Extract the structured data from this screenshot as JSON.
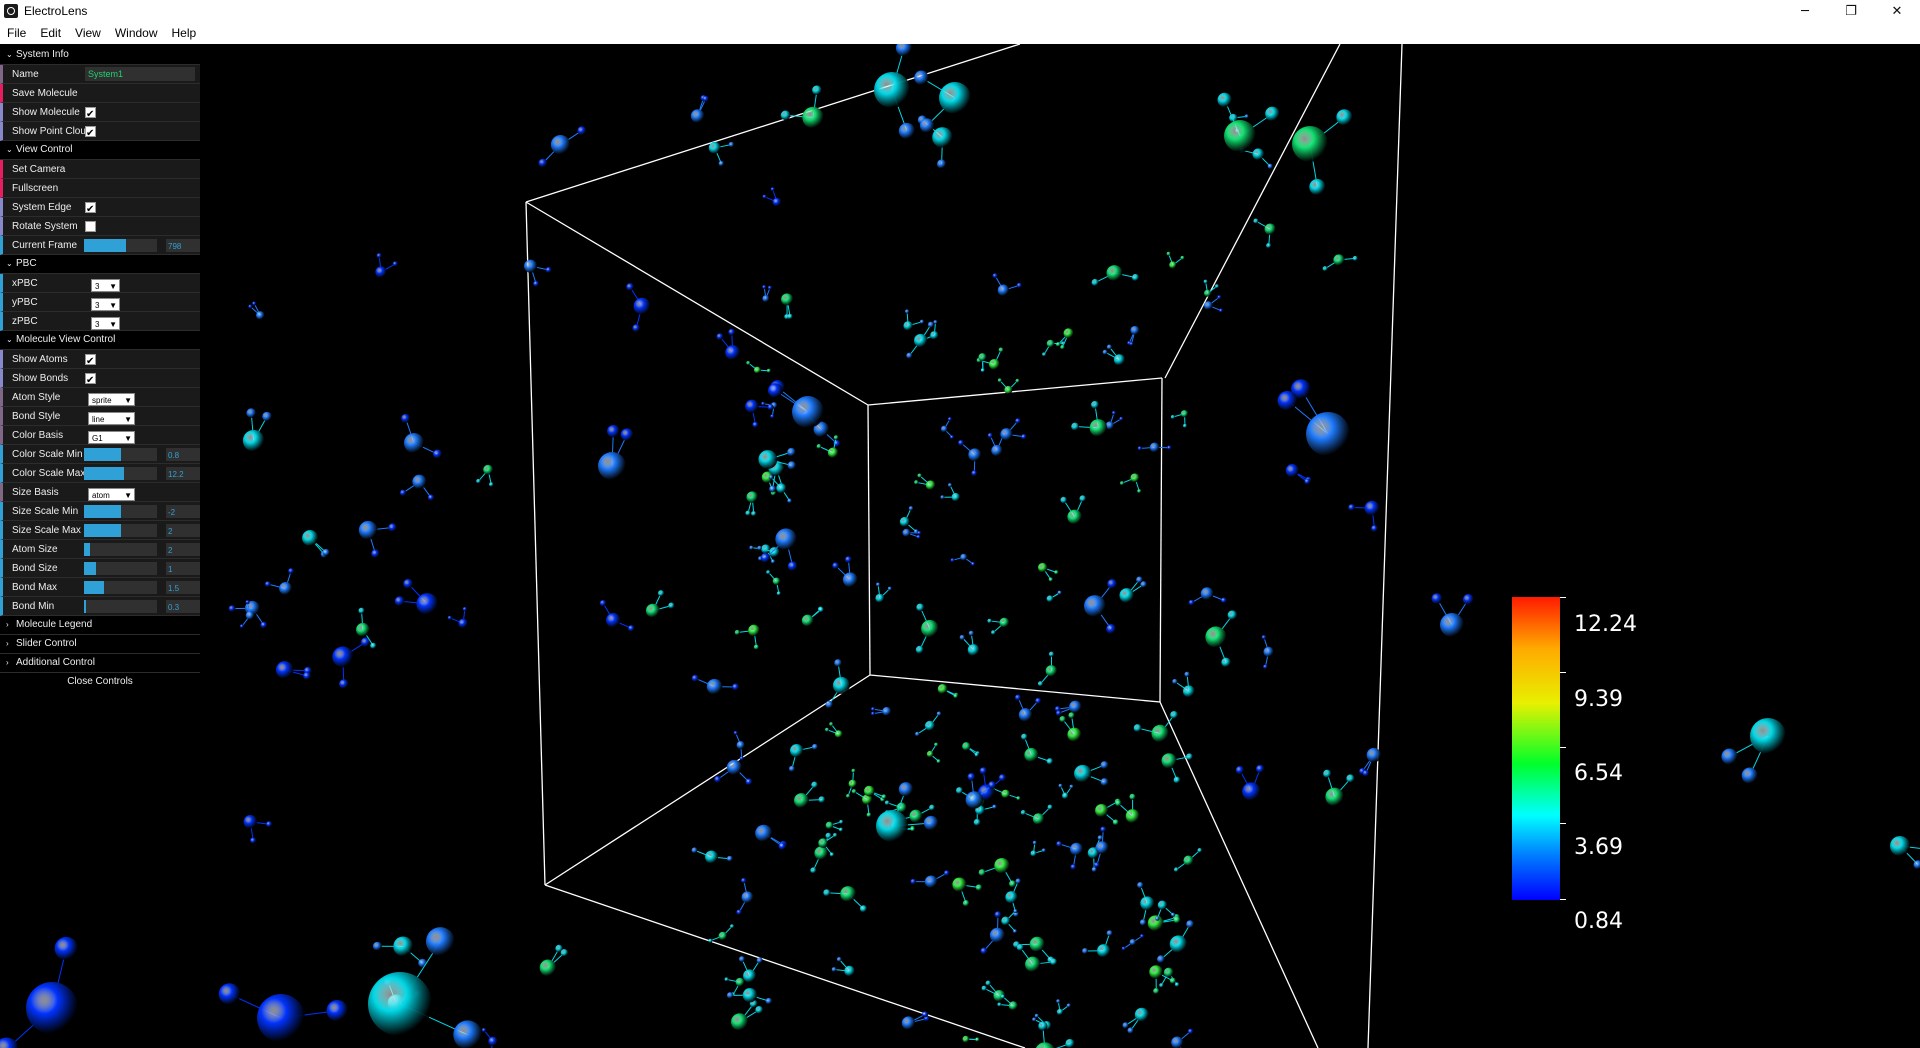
{
  "window": {
    "title": "ElectroLens",
    "controls": [
      "─",
      "❐",
      "✕"
    ]
  },
  "menu": [
    "File",
    "Edit",
    "View",
    "Window",
    "Help"
  ],
  "panel": {
    "system_info": {
      "title": "System Info",
      "name_label": "Name",
      "name_value": "System1",
      "save_molecule": "Save Molecule",
      "show_molecule": "Show Molecule",
      "show_molecule_checked": true,
      "show_point_cloud": "Show Point Cloud",
      "show_point_cloud_checked": true
    },
    "view_control": {
      "title": "View Control",
      "set_camera": "Set Camera",
      "fullscreen": "Fullscreen",
      "system_edge": "System Edge",
      "system_edge_checked": true,
      "rotate_system": "Rotate System",
      "rotate_system_checked": false,
      "current_frame": "Current Frame",
      "current_frame_value": "798",
      "current_frame_fill": 0.57
    },
    "pbc": {
      "title": "PBC",
      "xpbc": "xPBC",
      "xpbc_value": "3",
      "ypbc": "yPBC",
      "ypbc_value": "3",
      "zpbc": "zPBC",
      "zpbc_value": "3"
    },
    "molecule_view": {
      "title": "Molecule View Control",
      "show_atoms": "Show Atoms",
      "show_atoms_checked": true,
      "show_bonds": "Show Bonds",
      "show_bonds_checked": true,
      "atom_style": "Atom Style",
      "atom_style_value": "sprite",
      "bond_style": "Bond Style",
      "bond_style_value": "line",
      "color_basis": "Color Basis",
      "color_basis_value": "G1",
      "color_scale_min": "Color Scale Min",
      "color_scale_min_value": "0.8",
      "color_scale_min_fill": 0.5,
      "color_scale_max": "Color Scale Max",
      "color_scale_max_value": "12.2",
      "color_scale_max_fill": 0.55,
      "size_basis": "Size Basis",
      "size_basis_value": "atom",
      "size_scale_min": "Size Scale Min",
      "size_scale_min_value": "-2",
      "size_scale_min_fill": 0.5,
      "size_scale_max": "Size Scale Max",
      "size_scale_max_value": "2",
      "size_scale_max_fill": 0.5,
      "atom_size": "Atom Size",
      "atom_size_value": "2",
      "atom_size_fill": 0.08,
      "bond_size": "Bond Size",
      "bond_size_value": "1",
      "bond_size_fill": 0.17,
      "bond_max": "Bond Max",
      "bond_max_value": "1.5",
      "bond_max_fill": 0.28,
      "bond_min": "Bond Min",
      "bond_min_value": "0.3",
      "bond_min_fill": 0.03
    },
    "collapsed": [
      "Molecule Legend",
      "Slider Control",
      "Additional Control"
    ],
    "close_controls": "Close Controls"
  },
  "legend": {
    "labels": [
      "12.24",
      "9.39",
      "6.54",
      "3.69",
      "0.84"
    ],
    "colors": {
      "high": "#ff1a00",
      "mid": "#00ff2a",
      "low": "#0000ff"
    }
  },
  "viewport": {
    "edge_color": "#ffffff",
    "atom_colors": [
      "#0033ff",
      "#1e7bff",
      "#00d8e6",
      "#10e070",
      "#30f040"
    ]
  }
}
